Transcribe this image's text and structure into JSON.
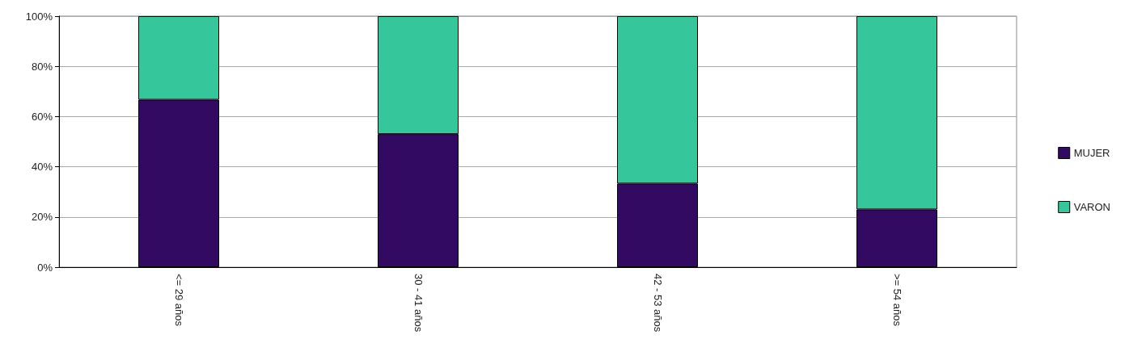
{
  "chart_data": {
    "type": "bar",
    "stacked": true,
    "categories": [
      "<= 29 años",
      "30 - 41 años",
      "42 - 53 años",
      ">= 54 años"
    ],
    "series": [
      {
        "name": "MUJER",
        "color": "#330a61",
        "values": [
          66.7,
          53,
          33.3,
          23
        ]
      },
      {
        "name": "VARON",
        "color": "#36c69c",
        "values": [
          33.3,
          47,
          66.7,
          77
        ]
      }
    ],
    "ylim": [
      0,
      100
    ],
    "yticks": [
      {
        "value": 0,
        "label": "0%"
      },
      {
        "value": 20,
        "label": "20%"
      },
      {
        "value": 40,
        "label": "40%"
      },
      {
        "value": 60,
        "label": "60%"
      },
      {
        "value": 80,
        "label": "80%"
      },
      {
        "value": 100,
        "label": "100%"
      }
    ],
    "grid": "y",
    "legend": "right"
  }
}
